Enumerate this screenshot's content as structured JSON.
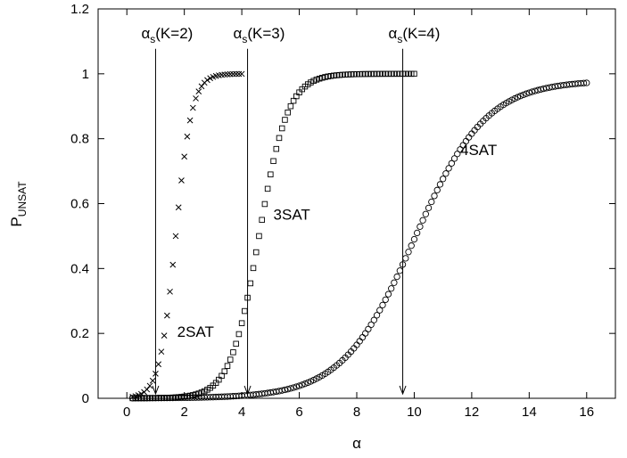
{
  "chart_data": {
    "type": "scatter",
    "xlabel": "α",
    "ylabel": {
      "main": "P",
      "sub": "UNSAT"
    },
    "xlim": [
      -1,
      17
    ],
    "ylim": [
      0,
      1.2
    ],
    "x_ticks": [
      0,
      2,
      4,
      6,
      8,
      10,
      12,
      14,
      16
    ],
    "y_ticks": [
      0,
      0.2,
      0.4,
      0.6,
      0.8,
      1,
      1.2
    ],
    "grid": false,
    "series": [
      {
        "name": "2SAT",
        "marker": "x",
        "center": 1.7,
        "width": 0.28,
        "x_start": 0.2,
        "x_end": 4.0,
        "step": 0.1
      },
      {
        "name": "3SAT",
        "marker": "square",
        "center": 4.6,
        "width": 0.5,
        "x_start": 0.2,
        "x_end": 10.0,
        "step": 0.1
      },
      {
        "name": "4SAT",
        "marker": "circle",
        "center": 10.0,
        "width": 1.25,
        "x_start": 0.2,
        "x_end": 16.0,
        "step": 0.1,
        "plateau": 0.98
      }
    ],
    "series_labels": [
      {
        "text": "2SAT",
        "x": 1.75,
        "y": 0.19
      },
      {
        "text": "3SAT",
        "x": 5.1,
        "y": 0.55
      },
      {
        "text": "4SAT",
        "x": 11.6,
        "y": 0.75
      }
    ],
    "annotations": [
      {
        "main": "α",
        "sub": "s",
        "rest": "(K=2)",
        "x": 1.0,
        "label_y": 1.11
      },
      {
        "main": "α",
        "sub": "s",
        "rest": "(K=3)",
        "x": 4.2,
        "label_y": 1.11
      },
      {
        "main": "α",
        "sub": "s",
        "rest": "(K=4)",
        "x": 9.6,
        "label_y": 1.11
      }
    ]
  }
}
